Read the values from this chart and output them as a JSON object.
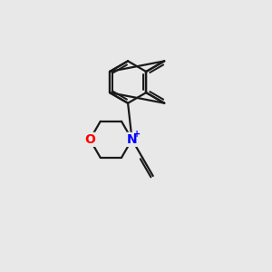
{
  "bg_color": "#e8e8e8",
  "bond_color": "#1a1a1a",
  "bond_width": 1.6,
  "atom_N_color": "#0000ff",
  "atom_O_color": "#ff0000",
  "font_size": 10,
  "plus_font_size": 7,
  "figsize": [
    3.0,
    3.0
  ],
  "dpi": 100,
  "bl": 0.78
}
